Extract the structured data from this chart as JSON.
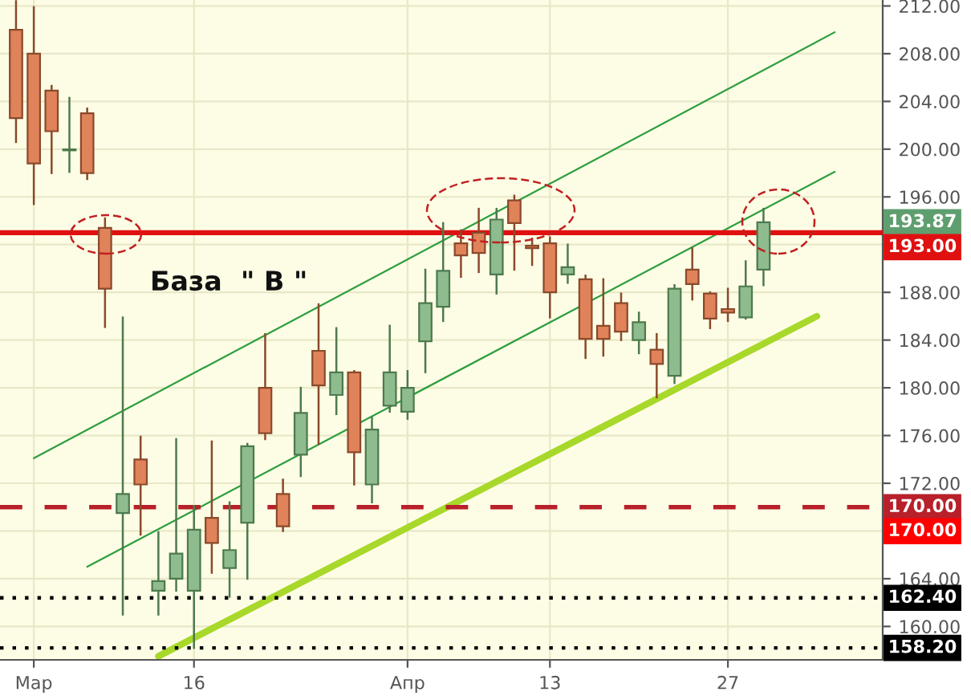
{
  "chart_data": {
    "type": "candlestick",
    "categories": [
      null,
      "Мар",
      null,
      null,
      null,
      null,
      null,
      null,
      null,
      null,
      "16",
      null,
      null,
      null,
      null,
      null,
      null,
      null,
      null,
      null,
      null,
      null,
      "Апр",
      null,
      null,
      null,
      null,
      null,
      null,
      null,
      "13",
      null,
      null,
      null,
      null,
      null,
      null,
      null,
      null,
      null,
      "27",
      null,
      null,
      null,
      null,
      null,
      null,
      null,
      null
    ],
    "ohlc": [
      [
        210.0,
        212.4,
        200.6,
        202.6
      ],
      [
        208.0,
        211.9,
        195.4,
        198.8
      ],
      [
        204.9,
        205.3,
        198.0,
        201.5
      ],
      [
        199.9,
        204.3,
        198.1,
        199.9
      ],
      [
        203.0,
        203.4,
        197.5,
        198.0
      ],
      [
        193.4,
        194.2,
        185.1,
        188.3
      ],
      [
        169.5,
        185.9,
        161.0,
        171.1
      ],
      [
        174.0,
        175.9,
        167.7,
        171.9
      ],
      [
        163.0,
        167.9,
        161.0,
        163.8
      ],
      [
        164.0,
        175.7,
        163.0,
        166.1
      ],
      [
        163.0,
        170.1,
        158.2,
        168.1
      ],
      [
        169.1,
        175.5,
        164.5,
        167.0
      ],
      [
        164.9,
        170.4,
        162.5,
        166.4
      ],
      [
        168.7,
        175.3,
        164.0,
        175.1
      ],
      [
        180.0,
        184.5,
        175.7,
        176.2
      ],
      [
        171.1,
        172.3,
        168.0,
        168.4
      ],
      [
        174.4,
        180.0,
        172.6,
        177.9
      ],
      [
        183.1,
        187.0,
        175.3,
        180.2
      ],
      [
        179.4,
        185.0,
        177.8,
        181.3
      ],
      [
        181.3,
        181.4,
        171.9,
        174.6
      ],
      [
        171.9,
        177.5,
        170.4,
        176.5
      ],
      [
        178.5,
        185.2,
        178.0,
        181.3
      ],
      [
        178.0,
        181.4,
        177.4,
        180.0
      ],
      [
        183.9,
        189.9,
        181.3,
        187.1
      ],
      [
        186.8,
        193.8,
        185.6,
        189.8
      ],
      [
        192.1,
        193.2,
        189.3,
        191.1
      ],
      [
        193.0,
        195.0,
        189.7,
        191.3
      ],
      [
        189.5,
        195.0,
        187.9,
        194.1
      ],
      [
        195.7,
        196.1,
        189.9,
        193.8
      ],
      [
        191.9,
        192.5,
        190.3,
        191.7
      ],
      [
        192.1,
        192.6,
        185.9,
        188.0
      ],
      [
        189.5,
        192.0,
        188.8,
        190.1
      ],
      [
        189.1,
        189.4,
        182.5,
        184.1
      ],
      [
        185.2,
        189.1,
        182.7,
        184.1
      ],
      [
        187.1,
        187.9,
        184.0,
        184.7
      ],
      [
        184.0,
        186.3,
        182.9,
        185.5
      ],
      [
        183.2,
        184.5,
        179.2,
        182.0
      ],
      [
        181.0,
        188.6,
        180.4,
        188.3
      ],
      [
        189.9,
        191.7,
        187.4,
        188.7
      ],
      [
        187.9,
        188.0,
        185.0,
        185.8
      ],
      [
        186.6,
        188.3,
        185.6,
        186.3
      ],
      [
        185.9,
        190.6,
        185.8,
        188.5
      ],
      [
        189.9,
        195.0,
        188.6,
        193.87
      ],
      null,
      null,
      null,
      null,
      null,
      null
    ],
    "colors": [
      "#e0825a",
      "#e0825a",
      "#e0825a",
      "#8fbc8f",
      "#e0825a",
      "#e0825a",
      "#8fbc8f",
      "#e0825a",
      "#8fbc8f",
      "#8fbc8f",
      "#8fbc8f",
      "#e0825a",
      "#8fbc8f",
      "#8fbc8f",
      "#e0825a",
      "#e0825a",
      "#8fbc8f",
      "#e0825a",
      "#8fbc8f",
      "#e0825a",
      "#8fbc8f",
      "#8fbc8f",
      "#8fbc8f",
      "#8fbc8f",
      "#8fbc8f",
      "#e0825a",
      "#e0825a",
      "#8fbc8f",
      "#e0825a",
      "#e0825a",
      "#e0825a",
      "#8fbc8f",
      "#e0825a",
      "#e0825a",
      "#e0825a",
      "#8fbc8f",
      "#e0825a",
      "#8fbc8f",
      "#e0825a",
      "#e0825a",
      "#e0825a",
      "#8fbc8f",
      "#8fbc8f",
      null,
      null,
      null,
      null,
      null,
      null
    ],
    "series": [
      {
        "type": "line",
        "values": [
          null,
          174.1,
          null,
          null,
          null,
          null,
          null,
          null,
          null,
          null,
          null,
          null,
          null,
          null,
          null,
          null,
          null,
          null,
          null,
          null,
          null,
          null,
          null,
          null,
          null,
          null,
          null,
          null,
          null,
          null,
          null,
          null,
          null,
          null,
          null,
          null,
          null,
          null,
          null,
          null,
          null,
          null,
          null,
          null,
          null,
          null,
          209.8,
          null,
          null
        ],
        "color": "#2e9e3e"
      },
      {
        "type": "line",
        "values": [
          null,
          null,
          null,
          null,
          165.0,
          null,
          null,
          null,
          null,
          null,
          null,
          null,
          null,
          null,
          null,
          null,
          null,
          null,
          null,
          null,
          null,
          null,
          null,
          null,
          null,
          null,
          null,
          null,
          null,
          null,
          null,
          null,
          null,
          null,
          null,
          null,
          null,
          null,
          null,
          null,
          null,
          null,
          null,
          null,
          null,
          null,
          198.1,
          null,
          null
        ],
        "color": "#2e9e3e"
      },
      {
        "type": "line",
        "values": [
          null,
          null,
          null,
          null,
          null,
          null,
          null,
          null,
          157.5,
          null,
          null,
          null,
          null,
          null,
          null,
          null,
          null,
          null,
          null,
          null,
          null,
          null,
          null,
          null,
          null,
          null,
          null,
          null,
          null,
          null,
          null,
          null,
          null,
          null,
          null,
          null,
          null,
          null,
          null,
          null,
          null,
          null,
          null,
          null,
          null,
          186.0,
          null,
          null,
          null
        ],
        "color": "#a8d82a"
      }
    ],
    "ylim": [
      157.2,
      212.5
    ],
    "yticks": [
      {
        "value": 160,
        "label": "160.00"
      },
      {
        "value": 164,
        "label": "164.00"
      },
      {
        "value": 168,
        "label": null
      },
      {
        "value": 172,
        "label": "172.00"
      },
      {
        "value": 176,
        "label": "176.00"
      },
      {
        "value": 180,
        "label": "180.00"
      },
      {
        "value": 184,
        "label": "184.00"
      },
      {
        "value": 188,
        "label": "188.00"
      },
      {
        "value": 192,
        "label": null
      },
      {
        "value": 196,
        "label": "196.00"
      },
      {
        "value": 200,
        "label": "200.00"
      },
      {
        "value": 204,
        "label": "204.00"
      },
      {
        "value": 208,
        "label": "208.00"
      },
      {
        "value": 212,
        "label": "212.00"
      }
    ],
    "ref_lines": [
      {
        "axis": "y",
        "value": 193.0,
        "label": "193.00",
        "color": "#e01010",
        "line_style": "solid"
      },
      {
        "axis": "y",
        "value": 170.0,
        "label": "170.00",
        "color": "#b8202a",
        "line_style": "dashed"
      },
      {
        "axis": "y",
        "value": 162.4,
        "label": "162.40",
        "color": "#000000",
        "line_style": "dotted"
      },
      {
        "axis": "y",
        "value": 158.2,
        "label": "158.20",
        "color": "#000000",
        "line_style": "dotted"
      }
    ],
    "annotations": [
      "База  \" В \"",
      "193.87",
      "170.00"
    ],
    "grid": true
  }
}
